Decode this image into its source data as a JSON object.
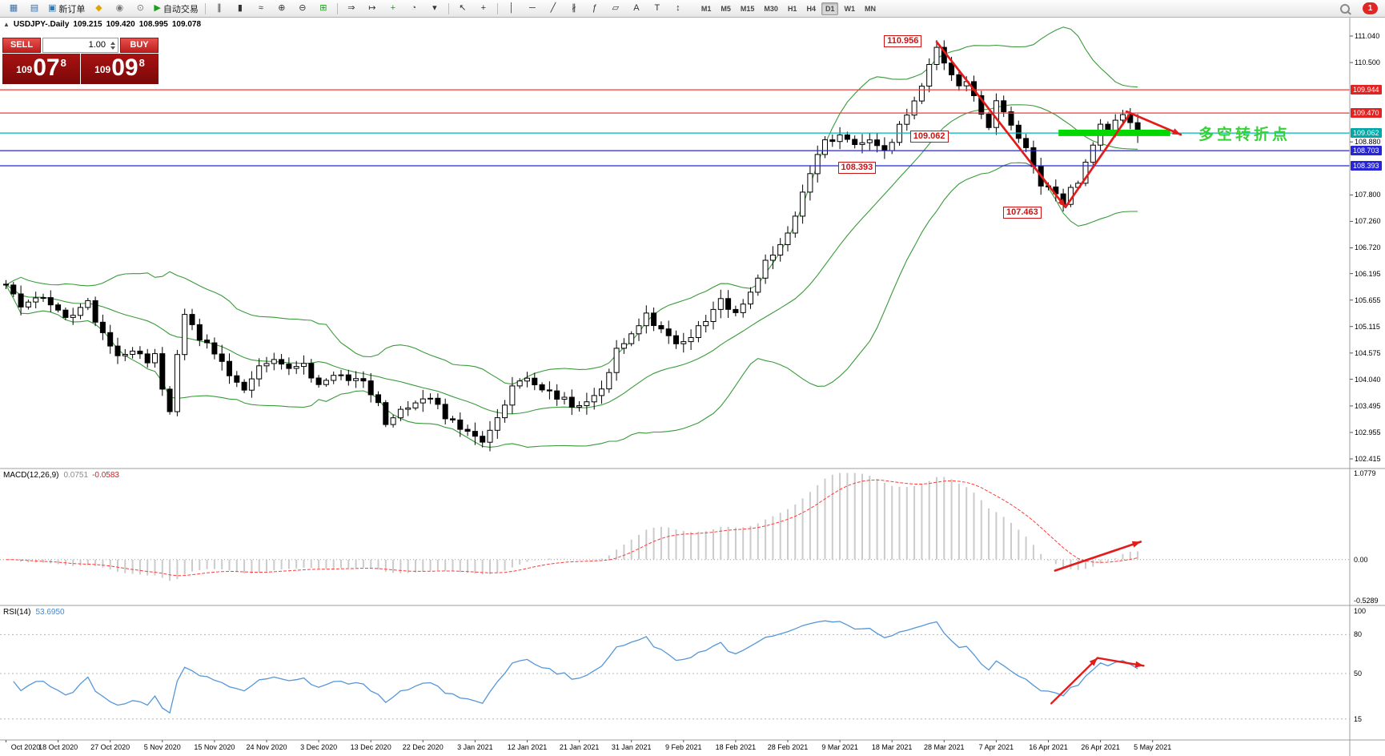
{
  "toolbar": {
    "buttons": [
      {
        "name": "new-chart",
        "glyph": "▦",
        "color": "#3a6ea5"
      },
      {
        "name": "chart-profiles",
        "glyph": "▤",
        "color": "#3a6ea5"
      },
      {
        "name": "new-order",
        "glyph": "▣",
        "color": "#2a7ab5",
        "label": "新订单"
      },
      {
        "name": "metaeditor",
        "glyph": "◆",
        "color": "#e0a500"
      },
      {
        "name": "market-watch",
        "glyph": "◉",
        "color": "#777777"
      },
      {
        "name": "data-window",
        "glyph": "⊙",
        "color": "#777777"
      },
      {
        "name": "autotrading",
        "glyph": "▶",
        "color": "#18a018",
        "label": "自动交易"
      },
      {
        "sep": true
      },
      {
        "name": "bar-chart",
        "glyph": "∥",
        "color": "#333333"
      },
      {
        "name": "candlestick-chart",
        "glyph": "▮",
        "color": "#333333"
      },
      {
        "name": "line-chart",
        "glyph": "≈",
        "color": "#333333"
      },
      {
        "name": "zoom-in",
        "glyph": "⊕",
        "color": "#333333"
      },
      {
        "name": "zoom-out",
        "glyph": "⊖",
        "color": "#333333"
      },
      {
        "name": "tile-windows",
        "glyph": "⊞",
        "color": "#18a018"
      },
      {
        "sep": true
      },
      {
        "name": "auto-scroll",
        "glyph": "⇒",
        "color": "#333333"
      },
      {
        "name": "chart-shift",
        "glyph": "↦",
        "color": "#333333"
      },
      {
        "name": "add-indicator",
        "glyph": "+",
        "color": "#18a018"
      },
      {
        "name": "periods",
        "glyph": "◔",
        "color": "#555555"
      },
      {
        "name": "templates",
        "glyph": "▾",
        "color": "#333333"
      },
      {
        "sep": true
      },
      {
        "name": "cursor",
        "glyph": "↖",
        "color": "#333333"
      },
      {
        "name": "crosshair",
        "glyph": "+",
        "color": "#333333"
      },
      {
        "sep": true
      },
      {
        "name": "vertical-line",
        "glyph": "│",
        "color": "#333333"
      },
      {
        "name": "horizontal-line",
        "glyph": "─",
        "color": "#333333"
      },
      {
        "name": "trendline",
        "glyph": "╱",
        "color": "#333333"
      },
      {
        "name": "equidistant-channel",
        "glyph": "∦",
        "color": "#333333"
      },
      {
        "name": "fibonacci",
        "glyph": "ƒ",
        "color": "#333333"
      },
      {
        "name": "shapes",
        "glyph": "▱",
        "color": "#333333"
      },
      {
        "name": "text",
        "glyph": "A",
        "color": "#333333"
      },
      {
        "name": "text-label",
        "glyph": "T",
        "color": "#333333"
      },
      {
        "name": "arrows",
        "glyph": "↕",
        "color": "#333333"
      }
    ],
    "timeframes": {
      "items": [
        "M1",
        "M5",
        "M15",
        "M30",
        "H1",
        "H4",
        "D1",
        "W1",
        "MN"
      ],
      "active": "D1"
    },
    "notification_count": "1"
  },
  "chart_header": {
    "icon": "▲",
    "symbol_timeframe": "USDJPY-.Daily",
    "open": "109.215",
    "high": "109.420",
    "low": "108.995",
    "close": "109.078"
  },
  "trade_panel": {
    "sell_label": "SELL",
    "buy_label": "BUY",
    "volume": "1.00",
    "bid": {
      "base": "109",
      "main": "07",
      "sup": "8"
    },
    "ask": {
      "base": "109",
      "main": "09",
      "sup": "8"
    }
  },
  "chart_data": {
    "type": "candlestick",
    "symbol": "USDJPY",
    "timeframe": "Daily",
    "n_bars": 153,
    "bars_per_label": 7,
    "x_labels": [
      "Oct 2020",
      "18 Oct 2020",
      "27 Oct 2020",
      "5 Nov 2020",
      "15 Nov 2020",
      "24 Nov 2020",
      "3 Dec 2020",
      "13 Dec 2020",
      "22 Dec 2020",
      "3 Jan 2021",
      "12 Jan 2021",
      "21 Jan 2021",
      "31 Jan 2021",
      "9 Feb 2021",
      "18 Feb 2021",
      "28 Feb 2021",
      "9 Mar 2021",
      "18 Mar 2021",
      "28 Mar 2021",
      "7 Apr 2021",
      "16 Apr 2021",
      "26 Apr 2021",
      "5 May 2021"
    ],
    "price_anchors": [
      [
        0,
        105.9
      ],
      [
        2,
        105.55
      ],
      [
        5,
        105.7
      ],
      [
        7,
        105.4
      ],
      [
        9,
        105.33
      ],
      [
        11,
        105.58
      ],
      [
        13,
        104.95
      ],
      [
        15,
        104.55
      ],
      [
        17,
        104.68
      ],
      [
        19,
        104.42
      ],
      [
        20,
        104.5
      ],
      [
        21,
        103.8
      ],
      [
        22,
        103.33
      ],
      [
        23,
        104.52
      ],
      [
        24,
        105.38
      ],
      [
        25,
        105.22
      ],
      [
        26,
        104.82
      ],
      [
        28,
        104.62
      ],
      [
        30,
        104.18
      ],
      [
        32,
        103.86
      ],
      [
        34,
        104.28
      ],
      [
        36,
        104.46
      ],
      [
        38,
        104.24
      ],
      [
        40,
        104.33
      ],
      [
        42,
        103.92
      ],
      [
        44,
        104.18
      ],
      [
        46,
        104.08
      ],
      [
        48,
        103.94
      ],
      [
        50,
        103.58
      ],
      [
        51,
        103.15
      ],
      [
        53,
        103.42
      ],
      [
        55,
        103.56
      ],
      [
        57,
        103.64
      ],
      [
        59,
        103.28
      ],
      [
        61,
        103.04
      ],
      [
        63,
        102.86
      ],
      [
        64,
        102.7
      ],
      [
        66,
        103.28
      ],
      [
        68,
        103.88
      ],
      [
        70,
        104.12
      ],
      [
        72,
        103.84
      ],
      [
        74,
        103.7
      ],
      [
        76,
        103.52
      ],
      [
        78,
        103.62
      ],
      [
        80,
        103.82
      ],
      [
        82,
        104.62
      ],
      [
        84,
        104.94
      ],
      [
        86,
        105.32
      ],
      [
        88,
        105.08
      ],
      [
        90,
        104.72
      ],
      [
        92,
        104.92
      ],
      [
        94,
        105.28
      ],
      [
        96,
        105.62
      ],
      [
        98,
        105.38
      ],
      [
        100,
        105.84
      ],
      [
        102,
        106.48
      ],
      [
        104,
        106.78
      ],
      [
        106,
        107.38
      ],
      [
        108,
        108.28
      ],
      [
        110,
        108.88
      ],
      [
        112,
        109.0
      ],
      [
        114,
        108.76
      ],
      [
        116,
        108.94
      ],
      [
        118,
        108.68
      ],
      [
        120,
        109.18
      ],
      [
        122,
        109.66
      ],
      [
        124,
        110.42
      ],
      [
        125,
        110.78
      ],
      [
        126,
        110.52
      ],
      [
        127,
        110.28
      ],
      [
        128,
        110.05
      ],
      [
        129,
        110.15
      ],
      [
        130,
        109.82
      ],
      [
        131,
        109.48
      ],
      [
        132,
        109.12
      ],
      [
        133,
        109.66
      ],
      [
        134,
        109.52
      ],
      [
        135,
        109.18
      ],
      [
        136,
        108.92
      ],
      [
        137,
        108.78
      ],
      [
        138,
        108.42
      ],
      [
        139,
        108.02
      ],
      [
        140,
        107.92
      ],
      [
        141,
        107.78
      ],
      [
        142,
        107.6
      ],
      [
        143,
        107.94
      ],
      [
        144,
        108.1
      ],
      [
        145,
        108.52
      ],
      [
        146,
        108.88
      ],
      [
        147,
        109.22
      ],
      [
        148,
        109.08
      ],
      [
        149,
        109.32
      ],
      [
        150,
        109.46
      ],
      [
        151,
        109.24
      ],
      [
        152,
        109.08
      ]
    ],
    "key_points": {
      "peak_bar": 125,
      "peak_price": 110.956,
      "low_bar": 142,
      "low_price": 107.463,
      "last_close": 109.078
    },
    "y_ticks": [
      {
        "label": "111.040",
        "price": 111.04
      },
      {
        "label": "110.500",
        "price": 110.5
      },
      {
        "label": "108.880",
        "price": 108.88
      },
      {
        "label": "107.800",
        "price": 107.8
      },
      {
        "label": "107.260",
        "price": 107.26
      },
      {
        "label": "106.720",
        "price": 106.72
      },
      {
        "label": "106.195",
        "price": 106.195
      },
      {
        "label": "105.655",
        "price": 105.655
      },
      {
        "label": "105.115",
        "price": 105.115
      },
      {
        "label": "104.575",
        "price": 104.575
      },
      {
        "label": "104.040",
        "price": 104.04
      },
      {
        "label": "103.495",
        "price": 103.495
      },
      {
        "label": "102.955",
        "price": 102.955
      },
      {
        "label": "102.415",
        "price": 102.415
      }
    ],
    "level_lines": [
      {
        "label": "109.944",
        "price": 109.944,
        "color": "#f23a3a",
        "badge": "#e32222"
      },
      {
        "label": "109.470",
        "price": 109.47,
        "color": "#f23a3a",
        "badge": "#e32222"
      },
      {
        "label": "109.062",
        "price": 109.062,
        "color": "#00b5b5",
        "badge": "#00a8a8"
      },
      {
        "label": "108.703",
        "price": 108.703,
        "color": "#2626d8",
        "badge": "#2626d8"
      },
      {
        "label": "108.393",
        "price": 108.393,
        "color": "#2626d8",
        "badge": "#2626d8"
      }
    ],
    "callouts": [
      {
        "text": "110.956",
        "bar": 118.3,
        "price": 110.95
      },
      {
        "text": "109.062",
        "bar": 121.8,
        "price": 109.0
      },
      {
        "text": "108.393",
        "bar": 112.1,
        "price": 108.36
      },
      {
        "text": "107.463",
        "bar": 134.3,
        "price": 107.44
      }
    ],
    "green_zone": {
      "from_bar": 141.8,
      "to_bar": 156.8,
      "price": 109.065,
      "thickness": 8,
      "color": "#00d800"
    },
    "annotation_text": {
      "text": "多空转折点",
      "color": "#38d038"
    },
    "trend_arrows": [
      {
        "points": [
          [
            125,
            110.92
          ],
          [
            142.3,
            107.55
          ]
        ],
        "head": true
      },
      {
        "points": [
          [
            142.3,
            107.55
          ],
          [
            150.8,
            109.42
          ]
        ],
        "head": false
      },
      {
        "points": [
          [
            150.5,
            109.5
          ],
          [
            157.8,
            109.03
          ]
        ],
        "head": true
      }
    ],
    "bollinger": {
      "period": 20,
      "deviation": 2,
      "color": "#3a9a3a"
    },
    "macd": {
      "label": "MACD(12,26,9)",
      "value_main": "0.0751",
      "value_signal": "-0.0583",
      "fast": 12,
      "slow": 26,
      "signal": 9,
      "scale_top": "1.0779",
      "scale_zero": "0.00",
      "scale_bottom": "-0.5289",
      "hist_color": "#cbcbcb",
      "signal_color": "#ff3b3b",
      "arrow": {
        "from": [
          140.9,
          -0.25
        ],
        "to": [
          152.4,
          0.22
        ]
      }
    },
    "rsi": {
      "label": "RSI(14)",
      "value": "53.6950",
      "period": 14,
      "line_color": "#5596d8",
      "levels": [
        80,
        50,
        15
      ],
      "scale_labels": [
        [
          "100",
          100
        ],
        [
          "80",
          80
        ],
        [
          "50",
          50
        ],
        [
          "15",
          15
        ]
      ],
      "arrows": [
        {
          "from": [
            140.4,
            27
          ],
          "to": [
            146.6,
            62
          ],
          "head": true
        },
        {
          "from": [
            146.6,
            62
          ],
          "to": [
            152.8,
            56
          ],
          "head": true
        }
      ]
    }
  }
}
